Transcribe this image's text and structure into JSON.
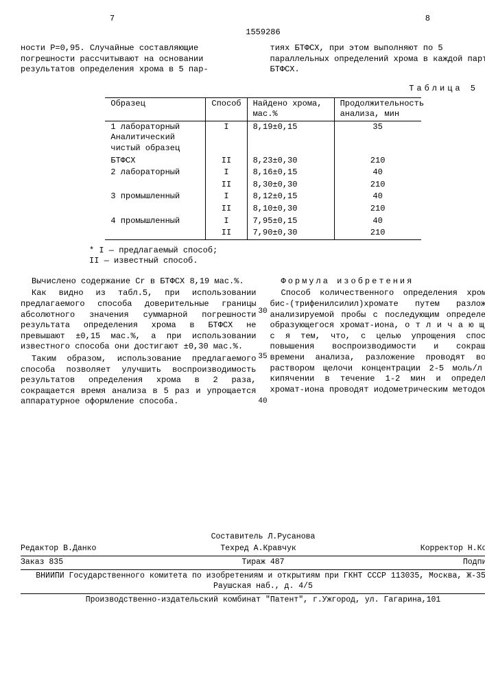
{
  "header": {
    "page_left": "7",
    "page_right": "8",
    "patent_number": "1559286"
  },
  "intro": {
    "left": "ности Р=0,95. Случайные составляющие погрешности рассчитывают на основании результатов определения хрома в 5 пар-",
    "right": "тиях БТФСХ, при этом выполняют по 5 параллельных определений хрома в каждой партии БТФСХ."
  },
  "table5": {
    "caption": "Таблица 5",
    "headers": [
      "Образец",
      "Способ",
      "Найдено хрома, мас.%",
      "Продолжительность анализа, мин"
    ],
    "rows": [
      [
        "1 лабораторный Аналитический чистый образец",
        "I",
        "8,19±0,15",
        "35"
      ],
      [
        "БТФСХ",
        "II",
        "8,23±0,30",
        "210"
      ],
      [
        "2 лабораторный",
        "I",
        "8,16±0,15",
        "40"
      ],
      [
        "",
        "II",
        "8,30±0,30",
        "210"
      ],
      [
        "3 промышленный",
        "I",
        "8,12±0,15",
        "40"
      ],
      [
        "",
        "II",
        "8,10±0,30",
        "210"
      ],
      [
        "4 промышленный",
        "I",
        "7,95±0,15",
        "40"
      ],
      [
        "",
        "II",
        "7,90±0,30",
        "210"
      ]
    ],
    "footnote_i": "* I — предлагаемый способ;",
    "footnote_ii": "II — известный способ."
  },
  "body": {
    "left_p1": "Вычислено содержание Cr в БТФСХ 8,19 мас.%.",
    "left_p2": "Как видно из табл.5, при использовании предлагаемого способа доверительные границы абсолютного значения суммарной погрешности результата определения хрома в БТФСХ не превышают ±0,15 мас.%, а при использовании известного способа они достигают ±0,30 мас.%.",
    "left_p3": "Таким образом, использование предлагаемого способа позволяет улучшить воспроизводимость результатов определения хрома в 2 раза, сокращается время анализа в 5 раз и упрощается аппаратурное оформление способа.",
    "right_title": "Формула изобретения",
    "right_p1": "Способ количественного определения хрома в бис-(трифенилсилил)хромате путем разложения анализируемой пробы с последующим определением образующегося хромат-иона, о т л и ч а ю щ и й с я тем, что, с целью упрощения способа, повышения воспроизводимости и сокращения времени анализа, разложение проводят водным раствором щелочи концентрации 2-5 моль/л при кипячении в течение 1-2 мин и определение хромат-иона проводят иодометрическим методом.",
    "ln30": "30",
    "ln35": "35",
    "ln40": "40"
  },
  "credits": {
    "compiler": "Составитель Л.Русанова",
    "editor": "Редактор В.Данко",
    "techred": "Техред А.Кравчук",
    "corrector": "Корректор Н.Король",
    "order": "Заказ 835",
    "tirage": "Тираж 487",
    "subscription": "Подписное",
    "org": "ВНИИПИ Государственного комитета по изобретениям и открытиям при ГКНТ СССР 113035, Москва, Ж-35, Раушская наб., д. 4/5",
    "printer": "Производственно-издательский комбинат \"Патент\", г.Ужгород, ул. Гагарина,101"
  }
}
